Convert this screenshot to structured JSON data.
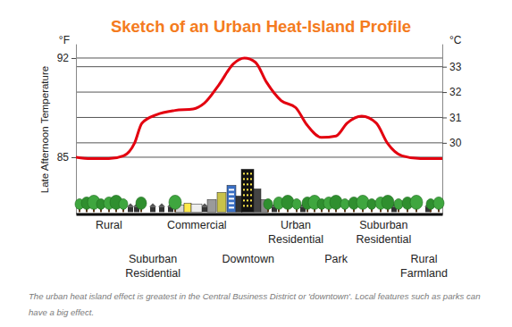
{
  "chart_data": {
    "type": "line",
    "title": "Sketch of an Urban Heat-Island Profile",
    "ylabel": "Late Afternoon Temperature",
    "ylabel_unit": "°F",
    "y2label": "°C",
    "x": [
      0,
      4,
      9,
      13,
      16,
      18,
      22,
      27,
      32,
      35,
      39,
      43,
      46,
      49,
      52,
      56,
      60,
      63,
      67,
      71,
      74,
      78,
      82,
      85,
      89,
      94,
      100
    ],
    "series": [
      {
        "color": "#e3000f",
        "values": [
          85.0,
          84.9,
          84.9,
          85.1,
          86.0,
          87.4,
          88.0,
          88.3,
          88.4,
          88.8,
          90.1,
          91.6,
          92.0,
          91.7,
          90.3,
          89.0,
          88.5,
          87.3,
          86.4,
          86.5,
          87.4,
          87.9,
          87.4,
          86.0,
          85.1,
          84.9,
          84.9
        ]
      }
    ],
    "xlim": [
      0,
      100
    ],
    "xticks": [],
    "ylim": [
      81,
      93
    ],
    "yticks": [
      85,
      92
    ],
    "y2lim": [
      27.2,
      33.9
    ],
    "y2ticks": [
      30,
      31,
      32,
      33
    ],
    "grid": true,
    "annotations": [
      {
        "text": "Rural",
        "x": 9
      },
      {
        "text": "Suburban Residential",
        "x": 21
      },
      {
        "text": "Commercial",
        "x": 33
      },
      {
        "text": "Downtown",
        "x": 47
      },
      {
        "text": "Urban Residential",
        "x": 60
      },
      {
        "text": "Park",
        "x": 71
      },
      {
        "text": "Suburban Residential",
        "x": 84
      },
      {
        "text": "Rural Farmland",
        "x": 95
      }
    ],
    "caption": "The urban heat island effect is greatest in the Central Business District or 'downtown'. Local features such as parks can have a big effect."
  }
}
